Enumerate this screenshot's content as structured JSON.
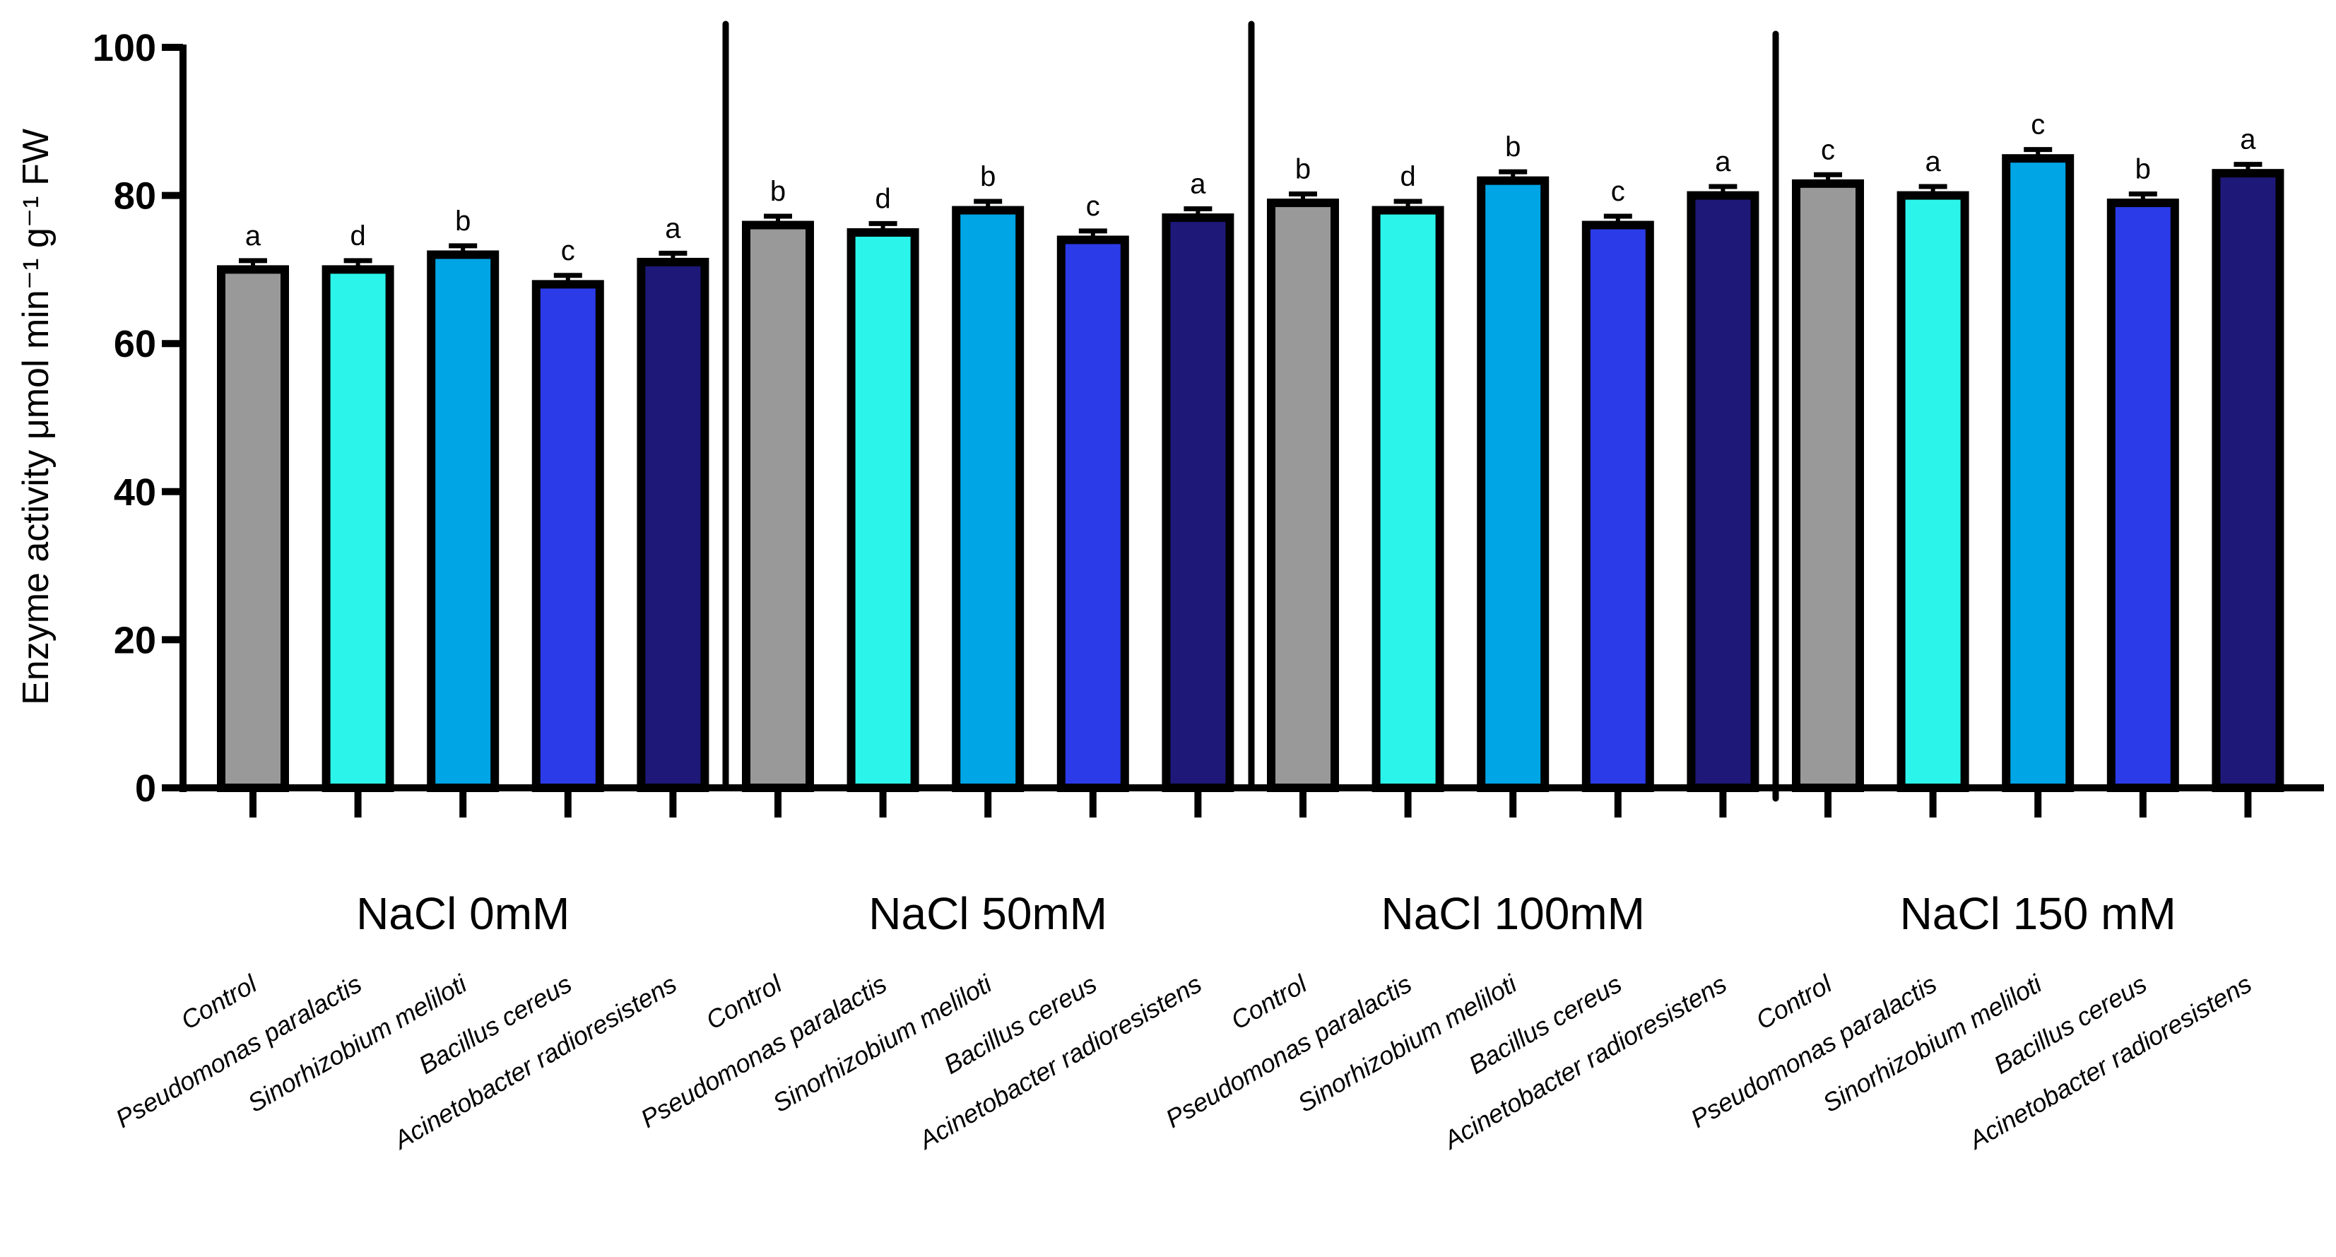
{
  "chart_data": {
    "type": "bar",
    "title": "",
    "xlabel": "",
    "ylabel": "Enzyme activity μmol min⁻¹ g⁻¹ FW",
    "ylim": [
      0,
      100
    ],
    "yticks": [
      "0",
      "20",
      "40",
      "60",
      "80",
      "100"
    ],
    "grid": false,
    "categories": [
      "Control",
      "Pseudomonas paralactis",
      "Sinorhizobium meliloti",
      "Bacillus cereus",
      "Acinetobacter radioresistens"
    ],
    "colors": [
      "#999999",
      "#2BF5EA",
      "#00A5E5",
      "#2B3BE8",
      "#1E1878"
    ],
    "groups": [
      {
        "name": "NaCl 0mM",
        "values": [
          70,
          70,
          72,
          68,
          71
        ],
        "errors": [
          1.2,
          1.2,
          1.2,
          1.2,
          1.2
        ],
        "letters": [
          "a",
          "d",
          "b",
          "c",
          "a"
        ]
      },
      {
        "name": "NaCl 50mM",
        "values": [
          76,
          75,
          78,
          74,
          77
        ],
        "errors": [
          1.2,
          1.2,
          1.2,
          1.2,
          1.2
        ],
        "letters": [
          "b",
          "d",
          "b",
          "c",
          "a"
        ]
      },
      {
        "name": "NaCl 100mM",
        "values": [
          79,
          78,
          82,
          76,
          80
        ],
        "errors": [
          1.2,
          1.2,
          1.2,
          1.2,
          1.2
        ],
        "letters": [
          "b",
          "d",
          "b",
          "c",
          "a"
        ]
      },
      {
        "name": "NaCl 150 mM",
        "values": [
          81.6,
          80,
          85,
          79,
          83
        ],
        "errors": [
          1.2,
          1.2,
          1.2,
          1.2,
          1.2
        ],
        "letters": [
          "c",
          "a",
          "c",
          "b",
          "a"
        ]
      }
    ]
  }
}
